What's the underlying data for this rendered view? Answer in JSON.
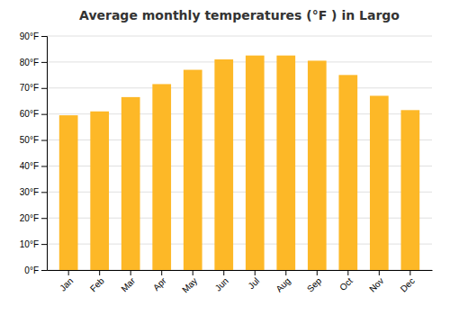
{
  "chart_data": {
    "type": "bar",
    "title": "Average monthly temperatures (°F ) in Largo",
    "categories": [
      "Jan",
      "Feb",
      "Mar",
      "Apr",
      "May",
      "Jun",
      "Jul",
      "Aug",
      "Sep",
      "Oct",
      "Nov",
      "Dec"
    ],
    "values": [
      59.5,
      61.0,
      66.5,
      71.5,
      77.0,
      81.0,
      82.5,
      82.5,
      80.5,
      75.0,
      67.0,
      61.5
    ],
    "color": "#FDB827",
    "ylim": [
      0,
      90
    ],
    "yticks": [
      {
        "value": 0,
        "label": "0°F"
      },
      {
        "value": 10,
        "label": "10°F"
      },
      {
        "value": 20,
        "label": "20°F"
      },
      {
        "value": 30,
        "label": "30°F"
      },
      {
        "value": 40,
        "label": "40°F"
      },
      {
        "value": 50,
        "label": "50°F"
      },
      {
        "value": 60,
        "label": "60°F"
      },
      {
        "value": 70,
        "label": "70°F"
      },
      {
        "value": 80,
        "label": "80°F"
      },
      {
        "value": 90,
        "label": "90°F"
      }
    ],
    "grid": true
  }
}
